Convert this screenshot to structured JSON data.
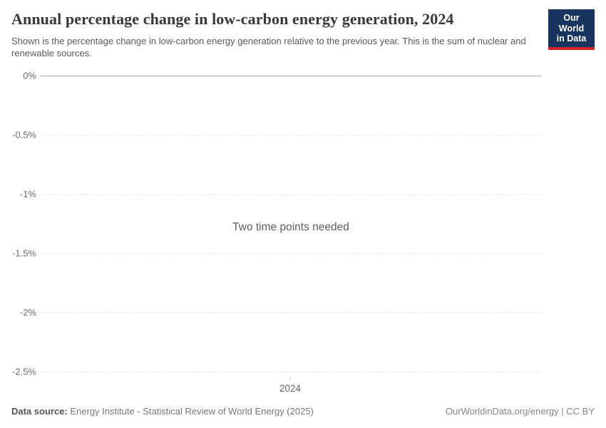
{
  "header": {
    "title": "Annual percentage change in low-carbon energy generation, 2024",
    "subtitle": "Shown is the percentage change in low-carbon energy generation relative to the previous year. This is the sum of nuclear and renewable sources.",
    "logo": {
      "line1": "Our World",
      "line2": "in Data"
    }
  },
  "chart_data": {
    "type": "line",
    "title": "Annual percentage change in low-carbon energy generation, 2024",
    "empty_message": "Two time points needed",
    "series": [],
    "x_axis": {
      "tick_labels": [
        "2024"
      ]
    },
    "y_axis": {
      "unit": "%",
      "ticks": [
        0,
        -0.5,
        -1,
        -1.5,
        -2,
        -2.5
      ],
      "tick_labels": [
        "0%",
        "-0.5%",
        "-1%",
        "-1.5%",
        "-2%",
        "-2.5%"
      ]
    },
    "ylim": [
      -2.5,
      0
    ],
    "grid": true,
    "legend": "none"
  },
  "footer": {
    "source_label": "Data source:",
    "source_text": " Energy Institute - Statistical Review of World Energy (2025)",
    "license_text": "OurWorldinData.org/energy | CC BY"
  },
  "colors": {
    "logo_background": "#17355e",
    "logo_stripe": "#d0252e",
    "title_text": "#383838",
    "subtitle_text": "#5a5a5a",
    "axis_text": "#6e6e6e",
    "zero_line": "#a3a3a3",
    "gridline": "#e7e7e7",
    "empty_message_text": "#5f5f5f"
  }
}
